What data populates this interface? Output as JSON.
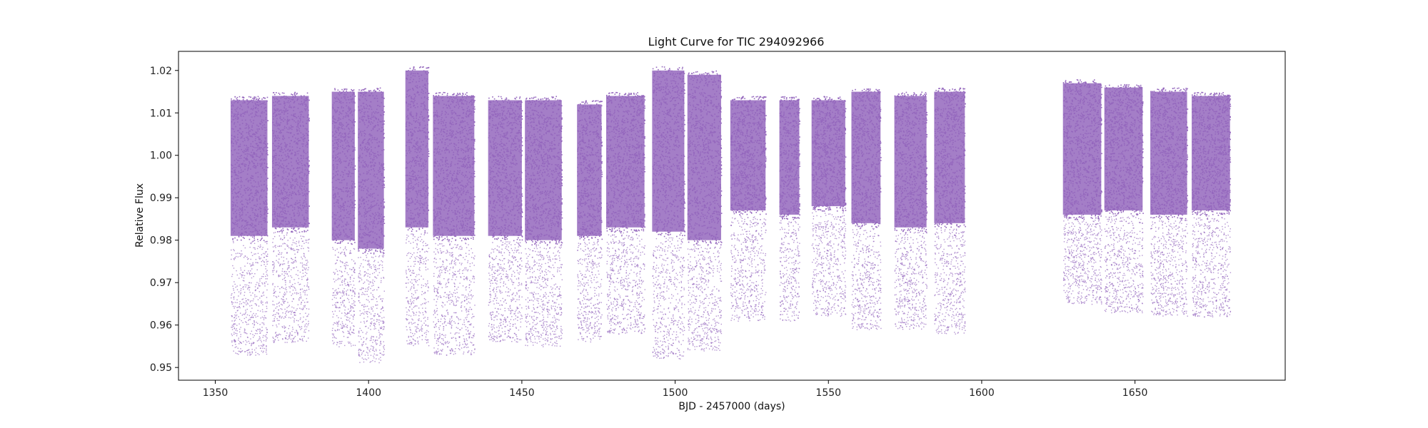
{
  "chart_data": {
    "type": "scatter",
    "title": "Light Curve for TIC 294092966",
    "xlabel": "BJD - 2457000 (days)",
    "ylabel": "Relative Flux",
    "xlim": [
      1338,
      1699
    ],
    "ylim": [
      0.947,
      1.0245
    ],
    "x_ticks": [
      1350,
      1400,
      1450,
      1500,
      1550,
      1600,
      1650
    ],
    "x_tick_labels": [
      "1350",
      "1400",
      "1450",
      "1500",
      "1550",
      "1600",
      "1650"
    ],
    "y_ticks": [
      0.95,
      0.96,
      0.97,
      0.98,
      0.99,
      1.0,
      1.01,
      1.02
    ],
    "y_tick_labels": [
      "0.95",
      "0.96",
      "0.97",
      "0.98",
      "0.99",
      "1.00",
      "1.01",
      "1.02"
    ],
    "grid": false,
    "marker_color": "#9467bd",
    "segments": [
      {
        "x_start": 1355.0,
        "x_end": 1367.0,
        "lo": 0.953,
        "hi": 1.014,
        "core_lo": 0.98
      },
      {
        "x_start": 1368.5,
        "x_end": 1380.5,
        "lo": 0.956,
        "hi": 1.015,
        "core_lo": 0.982
      },
      {
        "x_start": 1388.0,
        "x_end": 1395.5,
        "lo": 0.955,
        "hi": 1.016,
        "core_lo": 0.979
      },
      {
        "x_start": 1396.5,
        "x_end": 1405.0,
        "lo": 0.951,
        "hi": 1.016,
        "core_lo": 0.977
      },
      {
        "x_start": 1412.0,
        "x_end": 1419.5,
        "lo": 0.955,
        "hi": 1.021,
        "core_lo": 0.982
      },
      {
        "x_start": 1421.0,
        "x_end": 1434.5,
        "lo": 0.953,
        "hi": 1.015,
        "core_lo": 0.98
      },
      {
        "x_start": 1439.0,
        "x_end": 1450.0,
        "lo": 0.956,
        "hi": 1.014,
        "core_lo": 0.98
      },
      {
        "x_start": 1451.0,
        "x_end": 1463.0,
        "lo": 0.955,
        "hi": 1.014,
        "core_lo": 0.979
      },
      {
        "x_start": 1468.0,
        "x_end": 1476.0,
        "lo": 0.956,
        "hi": 1.013,
        "core_lo": 0.98
      },
      {
        "x_start": 1477.5,
        "x_end": 1490.0,
        "lo": 0.958,
        "hi": 1.015,
        "core_lo": 0.982
      },
      {
        "x_start": 1492.5,
        "x_end": 1503.0,
        "lo": 0.952,
        "hi": 1.021,
        "core_lo": 0.981
      },
      {
        "x_start": 1504.0,
        "x_end": 1515.0,
        "lo": 0.954,
        "hi": 1.02,
        "core_lo": 0.979
      },
      {
        "x_start": 1518.0,
        "x_end": 1529.5,
        "lo": 0.961,
        "hi": 1.014,
        "core_lo": 0.986
      },
      {
        "x_start": 1534.0,
        "x_end": 1540.5,
        "lo": 0.961,
        "hi": 1.014,
        "core_lo": 0.985
      },
      {
        "x_start": 1544.5,
        "x_end": 1555.5,
        "lo": 0.962,
        "hi": 1.014,
        "core_lo": 0.987
      },
      {
        "x_start": 1557.5,
        "x_end": 1567.0,
        "lo": 0.959,
        "hi": 1.016,
        "core_lo": 0.983
      },
      {
        "x_start": 1571.5,
        "x_end": 1582.0,
        "lo": 0.959,
        "hi": 1.015,
        "core_lo": 0.982
      },
      {
        "x_start": 1584.5,
        "x_end": 1594.5,
        "lo": 0.958,
        "hi": 1.016,
        "core_lo": 0.983
      },
      {
        "x_start": 1626.5,
        "x_end": 1639.0,
        "lo": 0.965,
        "hi": 1.018,
        "core_lo": 0.985
      },
      {
        "x_start": 1640.0,
        "x_end": 1652.5,
        "lo": 0.963,
        "hi": 1.017,
        "core_lo": 0.986
      },
      {
        "x_start": 1655.0,
        "x_end": 1667.0,
        "lo": 0.962,
        "hi": 1.016,
        "core_lo": 0.985
      },
      {
        "x_start": 1668.5,
        "x_end": 1681.0,
        "lo": 0.962,
        "hi": 1.015,
        "core_lo": 0.986
      }
    ]
  }
}
